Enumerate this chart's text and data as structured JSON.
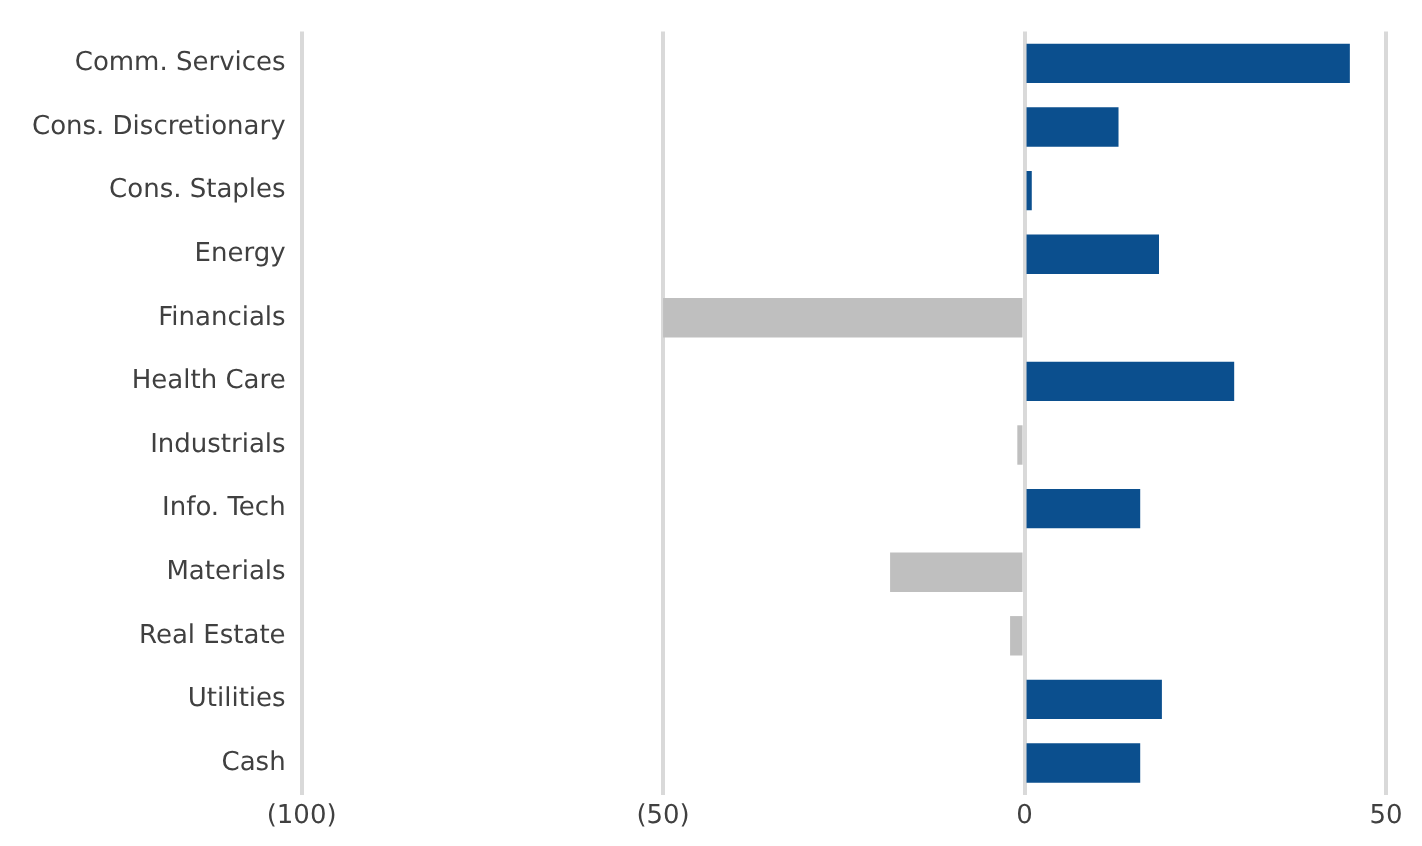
{
  "chart_data": {
    "type": "bar",
    "orientation": "horizontal",
    "categories": [
      "Comm. Services",
      "Cons. Discretionary",
      "Cons. Staples",
      "Energy",
      "Financials",
      "Health Care",
      "Industrials",
      "Info. Tech",
      "Materials",
      "Real Estate",
      "Utilities",
      "Cash"
    ],
    "values": [
      45,
      13,
      1,
      18.6,
      -50,
      29,
      -1,
      16,
      -18.6,
      -2,
      19,
      16
    ],
    "colors": [
      "#0b4f8e",
      "#0b4f8e",
      "#0b4f8e",
      "#0b4f8e",
      "#bfbfbf",
      "#0b4f8e",
      "#bfbfbf",
      "#0b4f8e",
      "#bfbfbf",
      "#bfbfbf",
      "#0b4f8e",
      "#0b4f8e"
    ],
    "xlim": [
      -100,
      50
    ],
    "xticks": [
      {
        "value": -100,
        "label": "(100)"
      },
      {
        "value": -50,
        "label": "(50)"
      },
      0,
      50
    ],
    "grid": "x",
    "legend": false
  }
}
